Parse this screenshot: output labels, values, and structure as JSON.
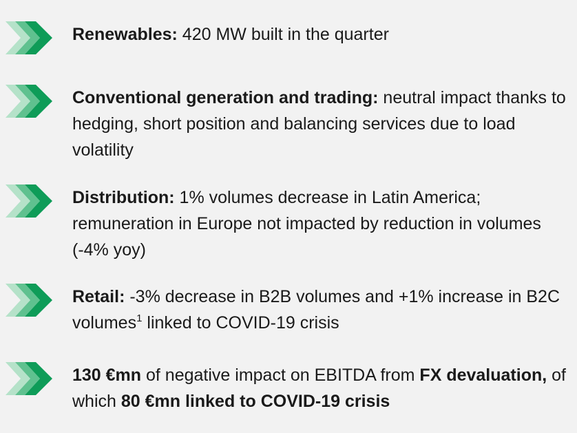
{
  "items": [
    {
      "segments": [
        {
          "text": "Renewables:",
          "bold": true
        },
        {
          "text": " 420 MW built in the quarter"
        }
      ]
    },
    {
      "segments": [
        {
          "text": "Conventional generation and trading:",
          "bold": true
        },
        {
          "text": " neutral impact thanks to hedging, short position and balancing services due to load volatility"
        }
      ]
    },
    {
      "segments": [
        {
          "text": "Distribution:",
          "bold": true
        },
        {
          "text": " 1% volumes decrease in Latin America; remuneration in Europe not impacted by reduction in volumes (-4% yoy)"
        }
      ]
    },
    {
      "segments": [
        {
          "text": "Retail:",
          "bold": true
        },
        {
          "text": " -3% decrease in B2B volumes and +1% increase in B2C volumes"
        },
        {
          "text": "1",
          "sup": true
        },
        {
          "text": " linked to COVID-19 crisis"
        }
      ]
    },
    {
      "segments": [
        {
          "text": "130 €mn",
          "bold": true
        },
        {
          "text": " of negative impact on EBITDA from "
        },
        {
          "text": "FX devaluation,",
          "bold": true
        },
        {
          "text": " of which "
        },
        {
          "text": "80 €mn linked to COVID-19 crisis",
          "bold": true
        }
      ]
    }
  ]
}
